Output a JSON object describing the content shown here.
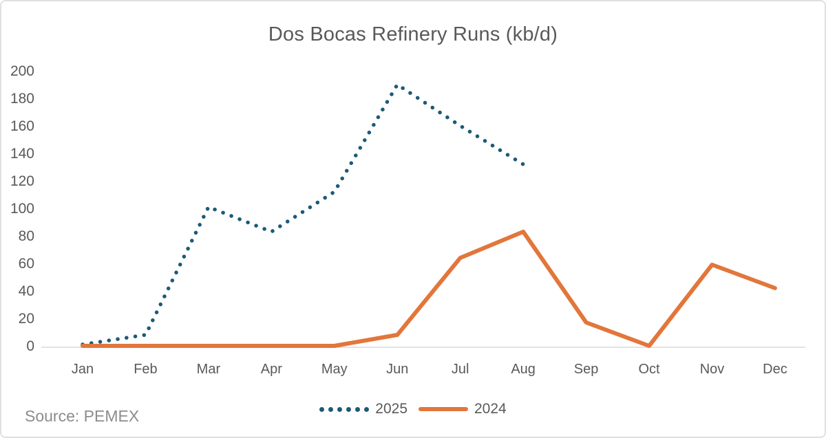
{
  "title": "Dos Bocas Refinery Runs (kb/d)",
  "source_note": "Source: PEMEX",
  "colors": {
    "series_2025": "#1C5A77",
    "series_2024": "#E2763B",
    "axis_text": "#595959",
    "axis_line": "#d8d8d8",
    "title_text": "#595959",
    "source_text": "#8c8c8c"
  },
  "legend": {
    "items": [
      {
        "label": "2025",
        "swatch": "dotted-line-swatch"
      },
      {
        "label": "2024",
        "swatch": "solid-line-swatch"
      }
    ]
  },
  "chart_data": {
    "type": "line",
    "title": "Dos Bocas Refinery Runs (kb/d)",
    "categories": [
      "Jan",
      "Feb",
      "Mar",
      "Apr",
      "May",
      "Jun",
      "Jul",
      "Aug",
      "Sep",
      "Oct",
      "Nov",
      "Dec"
    ],
    "series": [
      {
        "name": "2025",
        "style": "dotted",
        "color": "#1C5A77",
        "values": [
          1,
          8,
          101,
          83,
          112,
          190,
          160,
          132,
          null,
          null,
          null,
          null
        ]
      },
      {
        "name": "2024",
        "style": "solid",
        "color": "#E2763B",
        "values": [
          0,
          0,
          0,
          0,
          0,
          8,
          64,
          83,
          17,
          0,
          59,
          42
        ]
      }
    ],
    "xlabel": "",
    "ylabel": "",
    "ylim": [
      0,
      200
    ],
    "ytick_step": 20,
    "grid": false,
    "legend_position": "bottom"
  }
}
